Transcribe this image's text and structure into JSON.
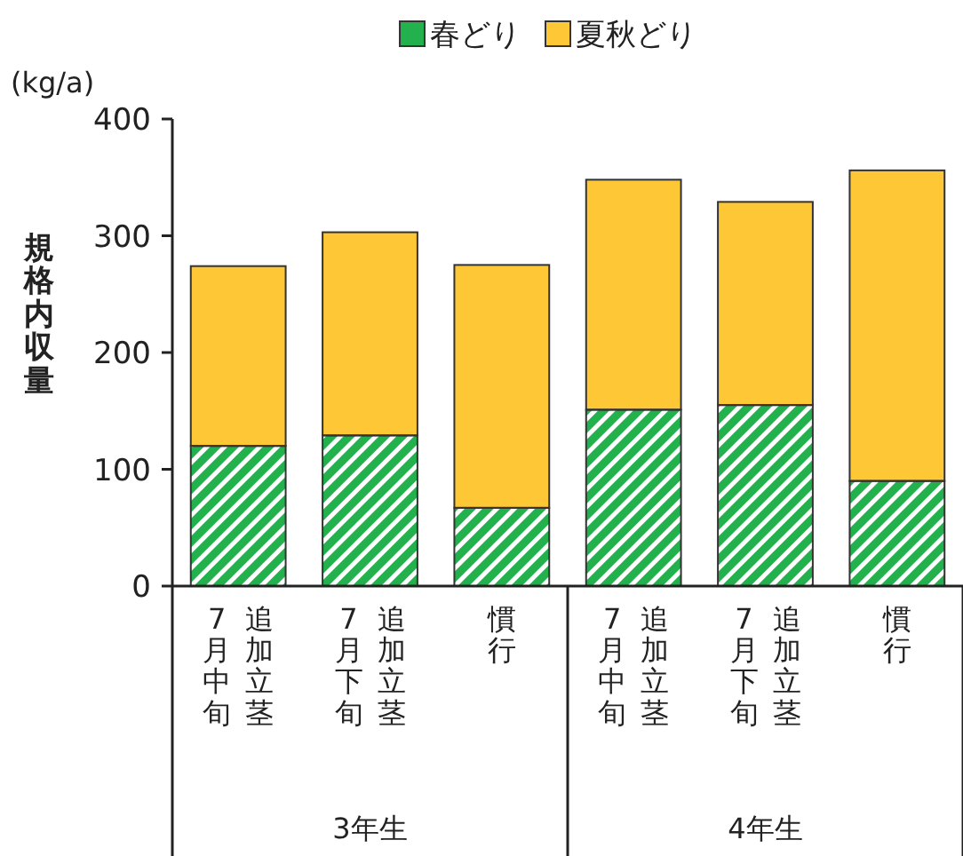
{
  "chart_data": {
    "type": "bar",
    "stacked": true,
    "categories": [
      "7月中旬追加立茎",
      "7月下旬追加立茎",
      "慣行",
      "7月中旬追加立茎",
      "7月下旬追加立茎",
      "慣行"
    ],
    "series": [
      {
        "name": "春どり",
        "color": "#22b14c",
        "values": [
          120,
          129,
          67,
          151,
          155,
          90
        ]
      },
      {
        "name": "夏秋どり",
        "color": "#fdc735",
        "values": [
          154,
          174,
          208,
          197,
          174,
          266
        ]
      }
    ],
    "ylabel": "規格内収量",
    "ylim": [
      0,
      400
    ],
    "yticks": [
      0,
      100,
      200,
      300,
      400
    ],
    "legend": "top",
    "annotations": [
      "(kg/a)",
      "3年生",
      "4年生"
    ]
  }
}
